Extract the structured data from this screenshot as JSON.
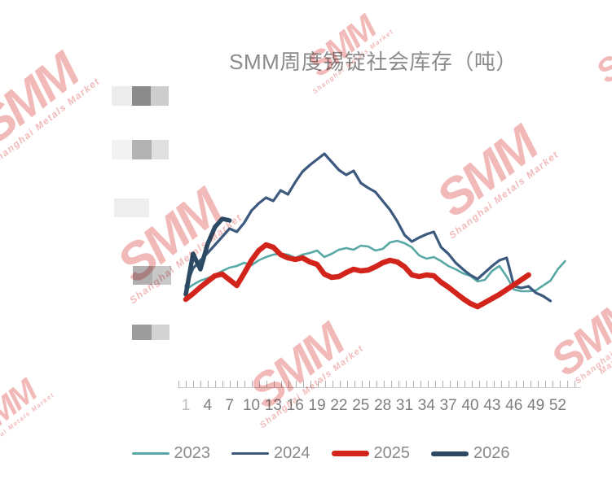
{
  "title": "SMM周度锡锭社会库存（吨）",
  "watermark": {
    "text": "SMM",
    "subtext": "Shanghai Metals Market",
    "color": "#efaead"
  },
  "legend": {
    "items": [
      {
        "label": "2023",
        "color": "#58a8a6",
        "seg_height": 3
      },
      {
        "label": "2024",
        "color": "#3c5a7e",
        "seg_height": 3
      },
      {
        "label": "2025",
        "color": "#d3241c",
        "seg_height": 7
      },
      {
        "label": "2026",
        "color": "#2c4a63",
        "seg_height": 6
      }
    ]
  },
  "chart_data": {
    "type": "line",
    "title": "SMM周度锡锭社会库存（吨）",
    "unit": "吨",
    "x_unit": "week of year",
    "x_tick_labels": [
      "1",
      "4",
      "7",
      "10",
      "13",
      "16",
      "19",
      "22",
      "25",
      "28",
      "31",
      "34",
      "37",
      "40",
      "43",
      "46",
      "49",
      "52"
    ],
    "y_tick_count": 5,
    "y_tick_labels_redacted": true,
    "ylim": [
      60,
      300
    ],
    "grid": false,
    "legend_position": "bottom",
    "series": [
      {
        "name": "2023",
        "color": "#58a8a6",
        "line_width": 2.6,
        "start_week": 1,
        "values": [
          114,
          120,
          125,
          128,
          132,
          137,
          141,
          143,
          147,
          144,
          150,
          154,
          157,
          158,
          157,
          153,
          157,
          159,
          162,
          154,
          158,
          163,
          165,
          163,
          168,
          167,
          162,
          164,
          172,
          174,
          171,
          166,
          156,
          152,
          154,
          149,
          143,
          139,
          134,
          131,
          124,
          126,
          137,
          143,
          130,
          114,
          112,
          112,
          113,
          119,
          125,
          139,
          149
        ]
      },
      {
        "name": "2024",
        "color": "#3c5a7e",
        "line_width": 3.2,
        "start_week": 1,
        "values": [
          118,
          140,
          150,
          159,
          169,
          179,
          189,
          185,
          196,
          211,
          220,
          227,
          223,
          236,
          231,
          246,
          259,
          267,
          274,
          281,
          271,
          261,
          255,
          260,
          245,
          239,
          234,
          223,
          212,
          198,
          181,
          173,
          178,
          182,
          185,
          166,
          158,
          147,
          139,
          132,
          127,
          135,
          143,
          150,
          153,
          118,
          116,
          118,
          110,
          106,
          100
        ]
      },
      {
        "name": "2026",
        "color": "#2c4a63",
        "line_width": 5.5,
        "start_week": 1,
        "values": [
          108,
          158,
          139,
          170,
          191,
          201,
          199
        ]
      },
      {
        "name": "2025",
        "color": "#d3241c",
        "line_width": 6.5,
        "start_week": 1,
        "values": [
          102,
          109,
          117,
          124,
          131,
          133,
          126,
          119,
          134,
          150,
          162,
          169,
          166,
          157,
          153,
          151,
          153,
          148,
          145,
          133,
          129,
          130,
          135,
          139,
          137,
          138,
          142,
          147,
          150,
          148,
          142,
          132,
          130,
          132,
          131,
          123,
          117,
          110,
          103,
          97,
          93,
          98,
          103,
          108,
          114,
          120,
          126,
          132
        ]
      }
    ]
  }
}
